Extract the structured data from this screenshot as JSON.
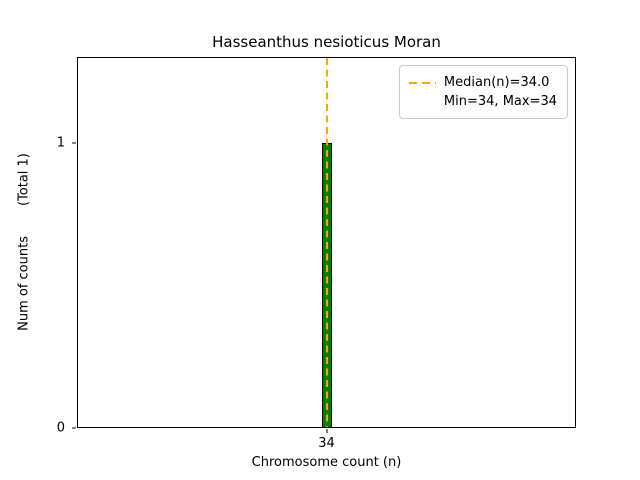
{
  "figure": {
    "title": "Hasseanthus nesioticus Moran",
    "xlabel": "Chromosome count (n)",
    "ylabel": "Num of counts",
    "ylabel_total": "(Total 1)",
    "legend": {
      "median_label": "Median(n)=34.0",
      "minmax_label": "Min=34, Max=34"
    }
  },
  "chart_data": {
    "type": "bar",
    "categories": [
      "34"
    ],
    "values": [
      1
    ],
    "title": "Hasseanthus nesioticus Moran",
    "xlabel": "Chromosome count (n)",
    "ylabel": "Num of counts",
    "total_counts": 1,
    "median_n": 34.0,
    "min_n": 34,
    "max_n": 34,
    "ylim": [
      0,
      1.3
    ],
    "yticks": [
      0,
      1
    ],
    "bar_color": "#008000",
    "bar_edge_color": "#000000",
    "median_line_color": "#FFA500",
    "median_line_style": "dashed",
    "legend_position": "upper right",
    "grid": false
  }
}
